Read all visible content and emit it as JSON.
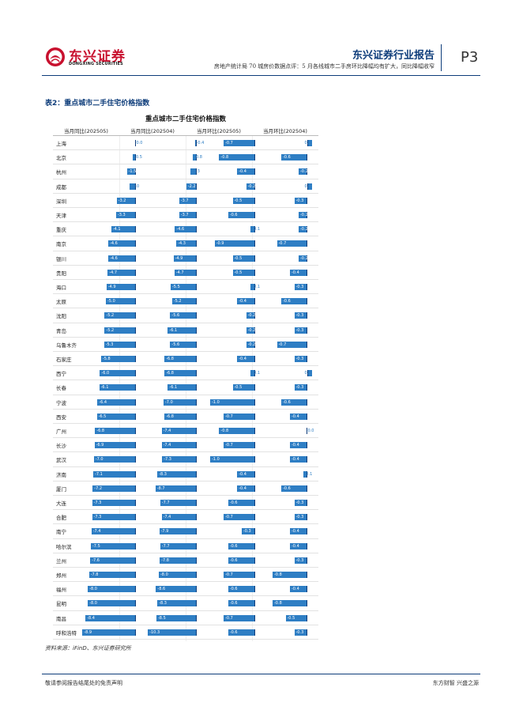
{
  "header": {
    "brand_cn": "东兴证券",
    "brand_en": "DONGXING SECURITIES",
    "report_type": "东兴证券行业报告",
    "subtitle": "房地产统计局 70 城房价数据点评：5 月各线城市二手房环比降幅均有扩大，同比降幅收窄",
    "page": "P3"
  },
  "table_caption": "表2：重点城市二手住宅价格指数",
  "chart_data": {
    "type": "bar",
    "orientation": "horizontal",
    "title": "重点城市二手住宅价格指数",
    "columns": [
      "当月同比(202505)",
      "当月同比(202504)",
      "当月环比(202505)",
      "当月环比(202504)"
    ],
    "categories": [
      "上海",
      "北京",
      "杭州",
      "成都",
      "深圳",
      "天津",
      "重庆",
      "南京",
      "银川",
      "贵阳",
      "海口",
      "太原",
      "沈阳",
      "青岛",
      "乌鲁木齐",
      "石家庄",
      "西宁",
      "长春",
      "宁波",
      "西安",
      "广州",
      "长沙",
      "武汉",
      "济南",
      "厦门",
      "大连",
      "合肥",
      "南宁",
      "哈尔滨",
      "兰州",
      "郑州",
      "福州",
      "昆明",
      "南昌",
      "呼和浩特"
    ],
    "series": [
      {
        "name": "当月同比(202505)",
        "values": [
          0.0,
          -0.5,
          -1.5,
          -1.0,
          -3.2,
          -3.3,
          -4.1,
          -4.6,
          -4.6,
          -4.7,
          -4.9,
          -5.0,
          -5.2,
          -5.2,
          -5.3,
          -5.8,
          -6.0,
          -6.1,
          -6.4,
          -6.5,
          -6.8,
          -6.9,
          -7.0,
          -7.1,
          -7.2,
          -7.3,
          -7.3,
          -7.4,
          -7.5,
          -7.6,
          -7.8,
          -8.0,
          -8.0,
          -8.4,
          -8.9
        ]
      },
      {
        "name": "当月同比(202504)",
        "values": [
          -0.4,
          -0.8,
          -1.3,
          -2.2,
          -3.7,
          -3.7,
          -4.6,
          -4.3,
          -4.9,
          -4.7,
          -5.5,
          -5.2,
          -5.6,
          -6.1,
          -5.6,
          -6.8,
          -6.8,
          -6.1,
          -7.0,
          -6.8,
          -7.4,
          -7.4,
          -7.3,
          -8.3,
          -8.7,
          -7.7,
          -7.4,
          -7.9,
          -7.7,
          -7.8,
          -8.0,
          -8.6,
          -8.3,
          -8.5,
          -10.3
        ]
      },
      {
        "name": "当月环比(202505)",
        "values": [
          -0.7,
          -0.8,
          -0.4,
          -0.2,
          -0.5,
          -0.6,
          -0.1,
          -0.9,
          -0.5,
          -0.5,
          -0.1,
          -0.4,
          -0.2,
          -0.2,
          -0.2,
          -0.4,
          -0.1,
          -0.5,
          -1.0,
          -0.7,
          -0.8,
          -0.7,
          -1.0,
          -0.4,
          -0.4,
          -0.6,
          -0.7,
          -0.3,
          -0.6,
          -0.6,
          -0.7,
          -0.6,
          -0.6,
          -0.7,
          -0.6
        ]
      },
      {
        "name": "当月环比(202504)",
        "values": [
          0.1,
          -0.6,
          -0.2,
          0.1,
          -0.3,
          -0.2,
          -0.2,
          -0.7,
          -0.2,
          -0.4,
          -0.3,
          -0.6,
          -0.3,
          -0.3,
          -0.7,
          -0.3,
          0.1,
          -0.3,
          -0.6,
          -0.4,
          0.0,
          -0.4,
          -0.4,
          -0.1,
          -0.6,
          -0.3,
          -0.3,
          -0.4,
          -0.4,
          -0.3,
          -0.8,
          -0.4,
          -0.8,
          -0.5,
          -0.3
        ]
      }
    ]
  },
  "source": "资料来源：iFinD、东兴证券研究所",
  "footer": {
    "left": "敬请参阅报告结尾处的免责声明",
    "right": "东方财智 兴盛之源"
  },
  "colors": {
    "brand_red": "#c8102e",
    "navy": "#0d3c7a",
    "bar_blue": "#2e7ec4"
  }
}
